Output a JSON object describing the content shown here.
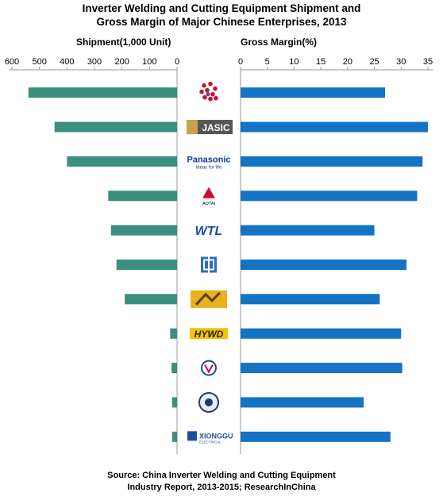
{
  "title_line1": "Inverter Welding and Cutting Equipment Shipment and",
  "title_line2": "Gross Margin of Major Chinese Enterprises, 2013",
  "source_line1": "Source: China Inverter Welding and Cutting Equipment",
  "source_line2": "Industry Report, 2013-2015;  ResearchInChina",
  "colors": {
    "shipment": "#3a8f7e",
    "margin": "#1473c4",
    "axis": "#999999"
  },
  "chart_data": [
    {
      "type": "bar",
      "orientation": "horizontal",
      "direction": "right-to-left",
      "xlabel": "Shipment(1,000 Unit)",
      "xlim": [
        0,
        600
      ],
      "ticks": [
        600,
        500,
        400,
        300,
        200,
        100,
        0
      ],
      "categories": [
        "logo-1",
        "JASIC",
        "Panasonic",
        "AOTAI",
        "WTL",
        "logo-6",
        "logo-7",
        "HYWD",
        "logo-9",
        "logo-10",
        "XIONGGU"
      ],
      "values": [
        540,
        445,
        400,
        250,
        240,
        220,
        190,
        25,
        20,
        18,
        18
      ]
    },
    {
      "type": "bar",
      "orientation": "horizontal",
      "xlabel": "Gross Margin(%)",
      "xlim": [
        0,
        35
      ],
      "ticks": [
        0,
        5,
        10,
        15,
        20,
        25,
        30,
        35
      ],
      "categories": [
        "logo-1",
        "JASIC",
        "Panasonic",
        "AOTAI",
        "WTL",
        "logo-6",
        "logo-7",
        "HYWD",
        "logo-9",
        "logo-10",
        "XIONGGU"
      ],
      "values": [
        27,
        35,
        34,
        33,
        25,
        31,
        26,
        30,
        30.2,
        23,
        28
      ]
    }
  ],
  "logos": [
    {
      "name": "logo-1",
      "text": ""
    },
    {
      "name": "jasic-logo",
      "text": "JASIC"
    },
    {
      "name": "panasonic-logo",
      "text": "Panasonic",
      "subtext": "ideas for life"
    },
    {
      "name": "aotai-logo",
      "text": "AOTAI"
    },
    {
      "name": "wtl-logo",
      "text": "WTL"
    },
    {
      "name": "logo-6",
      "text": ""
    },
    {
      "name": "logo-7",
      "text": ""
    },
    {
      "name": "hywd-logo",
      "text": "HYWD"
    },
    {
      "name": "logo-9",
      "text": ""
    },
    {
      "name": "logo-10",
      "text": ""
    },
    {
      "name": "xionggu-logo",
      "text": "XIONGGU",
      "subtext": "ELECTRICAL"
    }
  ]
}
